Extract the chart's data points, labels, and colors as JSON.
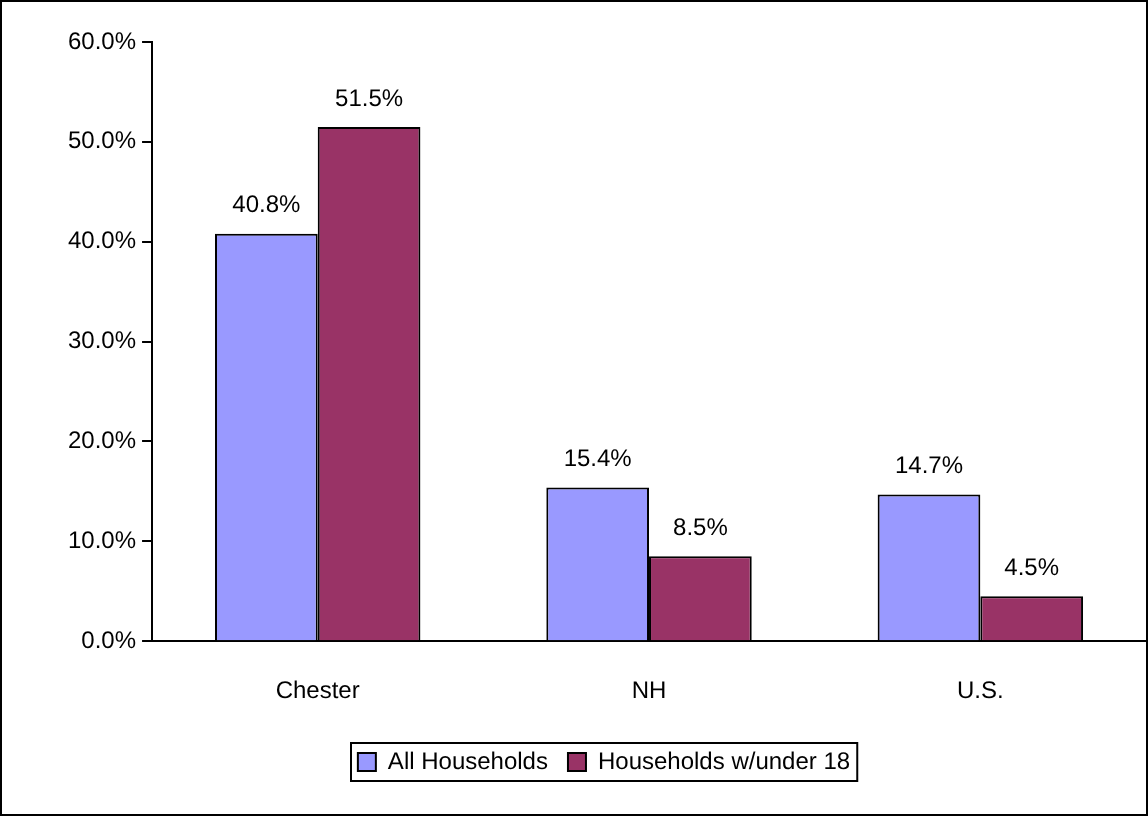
{
  "chart_data": {
    "type": "bar",
    "categories": [
      "Chester",
      "NH",
      "U.S."
    ],
    "series": [
      {
        "name": "All Households",
        "color": "#9999ff",
        "values": [
          40.8,
          15.4,
          14.7
        ],
        "value_labels": [
          "40.8%",
          "15.4%",
          "14.7%"
        ]
      },
      {
        "name": "Households w/under 18",
        "color": "#993366",
        "values": [
          51.5,
          8.5,
          4.5
        ],
        "value_labels": [
          "51.5%",
          "8.5%",
          "4.5%"
        ]
      }
    ],
    "ylim": [
      0,
      60
    ],
    "yticks": [
      {
        "value": 0,
        "label": "0.0%"
      },
      {
        "value": 10,
        "label": "10.0%"
      },
      {
        "value": 20,
        "label": "20.0%"
      },
      {
        "value": 30,
        "label": "30.0%"
      },
      {
        "value": 40,
        "label": "40.0%"
      },
      {
        "value": 50,
        "label": "50.0%"
      },
      {
        "value": 60,
        "label": "60.0%"
      }
    ],
    "grid": false,
    "legend": "bottom"
  }
}
